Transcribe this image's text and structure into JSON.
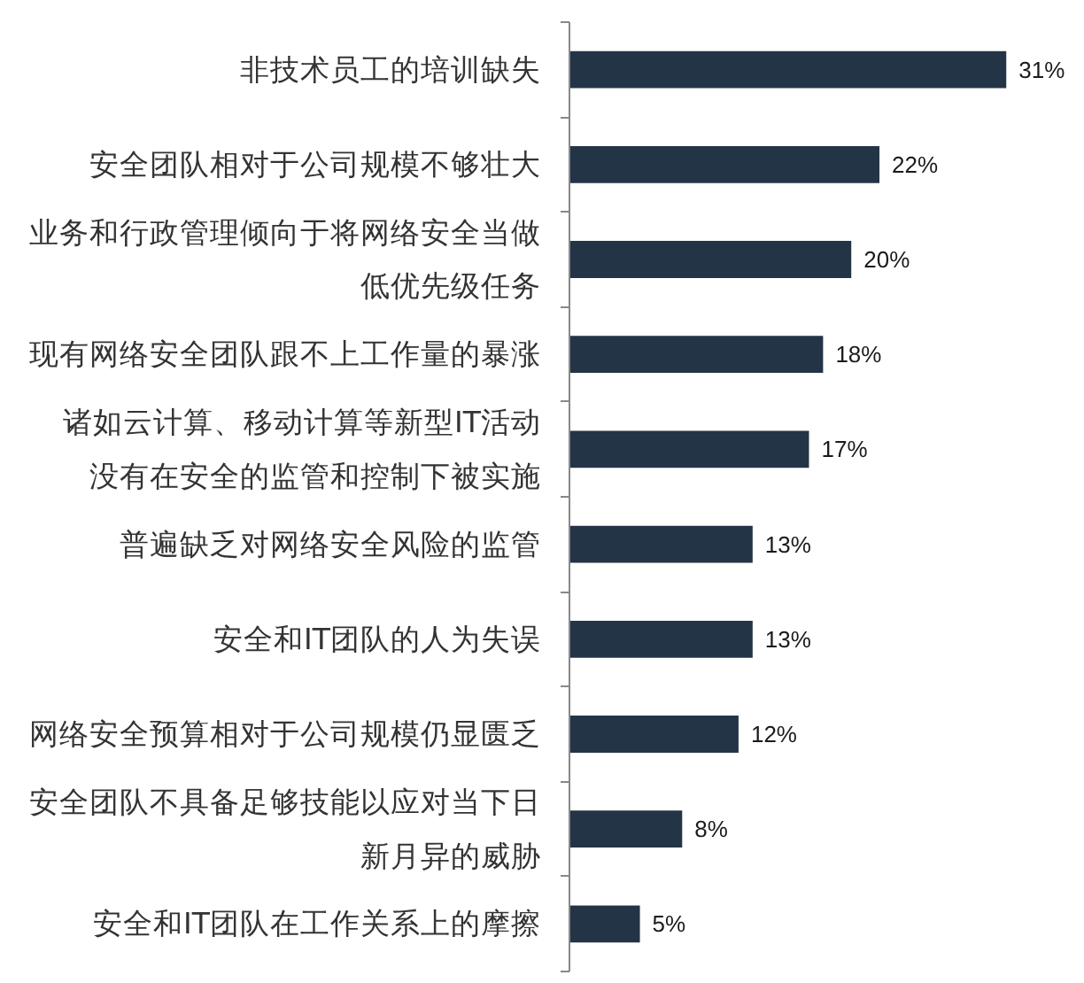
{
  "chart_data": {
    "type": "bar",
    "orientation": "horizontal",
    "categories": [
      "非技术员工的培训缺失",
      "安全团队相对于公司规模不够壮大",
      "业务和行政管理倾向于将网络安全当做低优先级任务",
      "现有网络安全团队跟不上工作量的暴涨",
      "诸如云计算、移动计算等新型IT活动没有在安全的监管和控制下被实施",
      "普遍缺乏对网络安全风险的监管",
      "安全和IT团队的人为失误",
      "网络安全预算相对于公司规模仍显匮乏",
      "安全团队不具备足够技能以应对当下日新月异的威胁",
      "安全和IT团队在工作关系上的摩擦"
    ],
    "values": [
      31,
      22,
      20,
      18,
      17,
      13,
      13,
      12,
      8,
      5
    ],
    "value_labels": [
      "31%",
      "22%",
      "20%",
      "18%",
      "17%",
      "13%",
      "13%",
      "12%",
      "8%",
      "5%"
    ],
    "color": "#243447",
    "tick_labels": "y"
  }
}
